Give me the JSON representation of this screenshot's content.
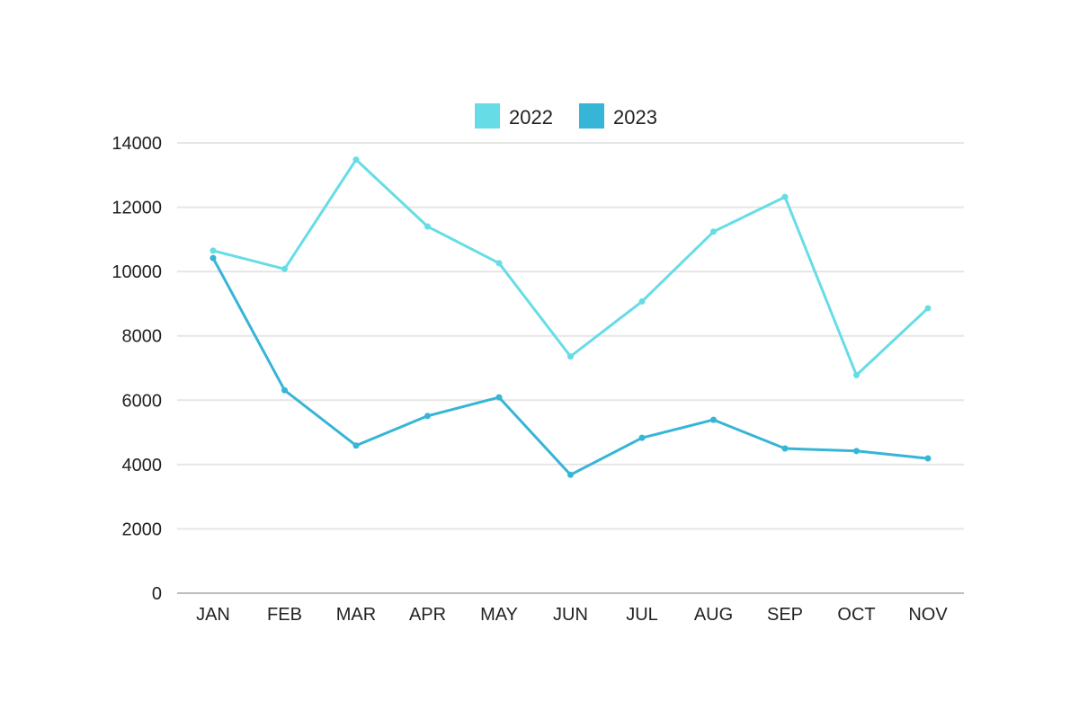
{
  "chart_data": {
    "type": "line",
    "title": "",
    "xlabel": "",
    "ylabel": "",
    "categories": [
      "JAN",
      "FEB",
      "MAR",
      "APR",
      "MAY",
      "JUN",
      "JUL",
      "AUG",
      "SEP",
      "OCT",
      "NOV"
    ],
    "series": [
      {
        "name": "2022",
        "color": "#66dde6",
        "values": [
          10650,
          10080,
          13480,
          11400,
          10260,
          7360,
          9070,
          11240,
          12320,
          6780,
          8860
        ]
      },
      {
        "name": "2023",
        "color": "#36b5d6",
        "values": [
          10420,
          6310,
          4590,
          5510,
          6090,
          3680,
          4830,
          5390,
          4500,
          4420,
          4190
        ]
      }
    ],
    "ylim": [
      0,
      14000
    ],
    "yticks": [
      "0",
      "2000",
      "4000",
      "6000",
      "8000",
      "10000",
      "12000",
      "14000"
    ],
    "grid": true,
    "legend_position": "top-center"
  }
}
